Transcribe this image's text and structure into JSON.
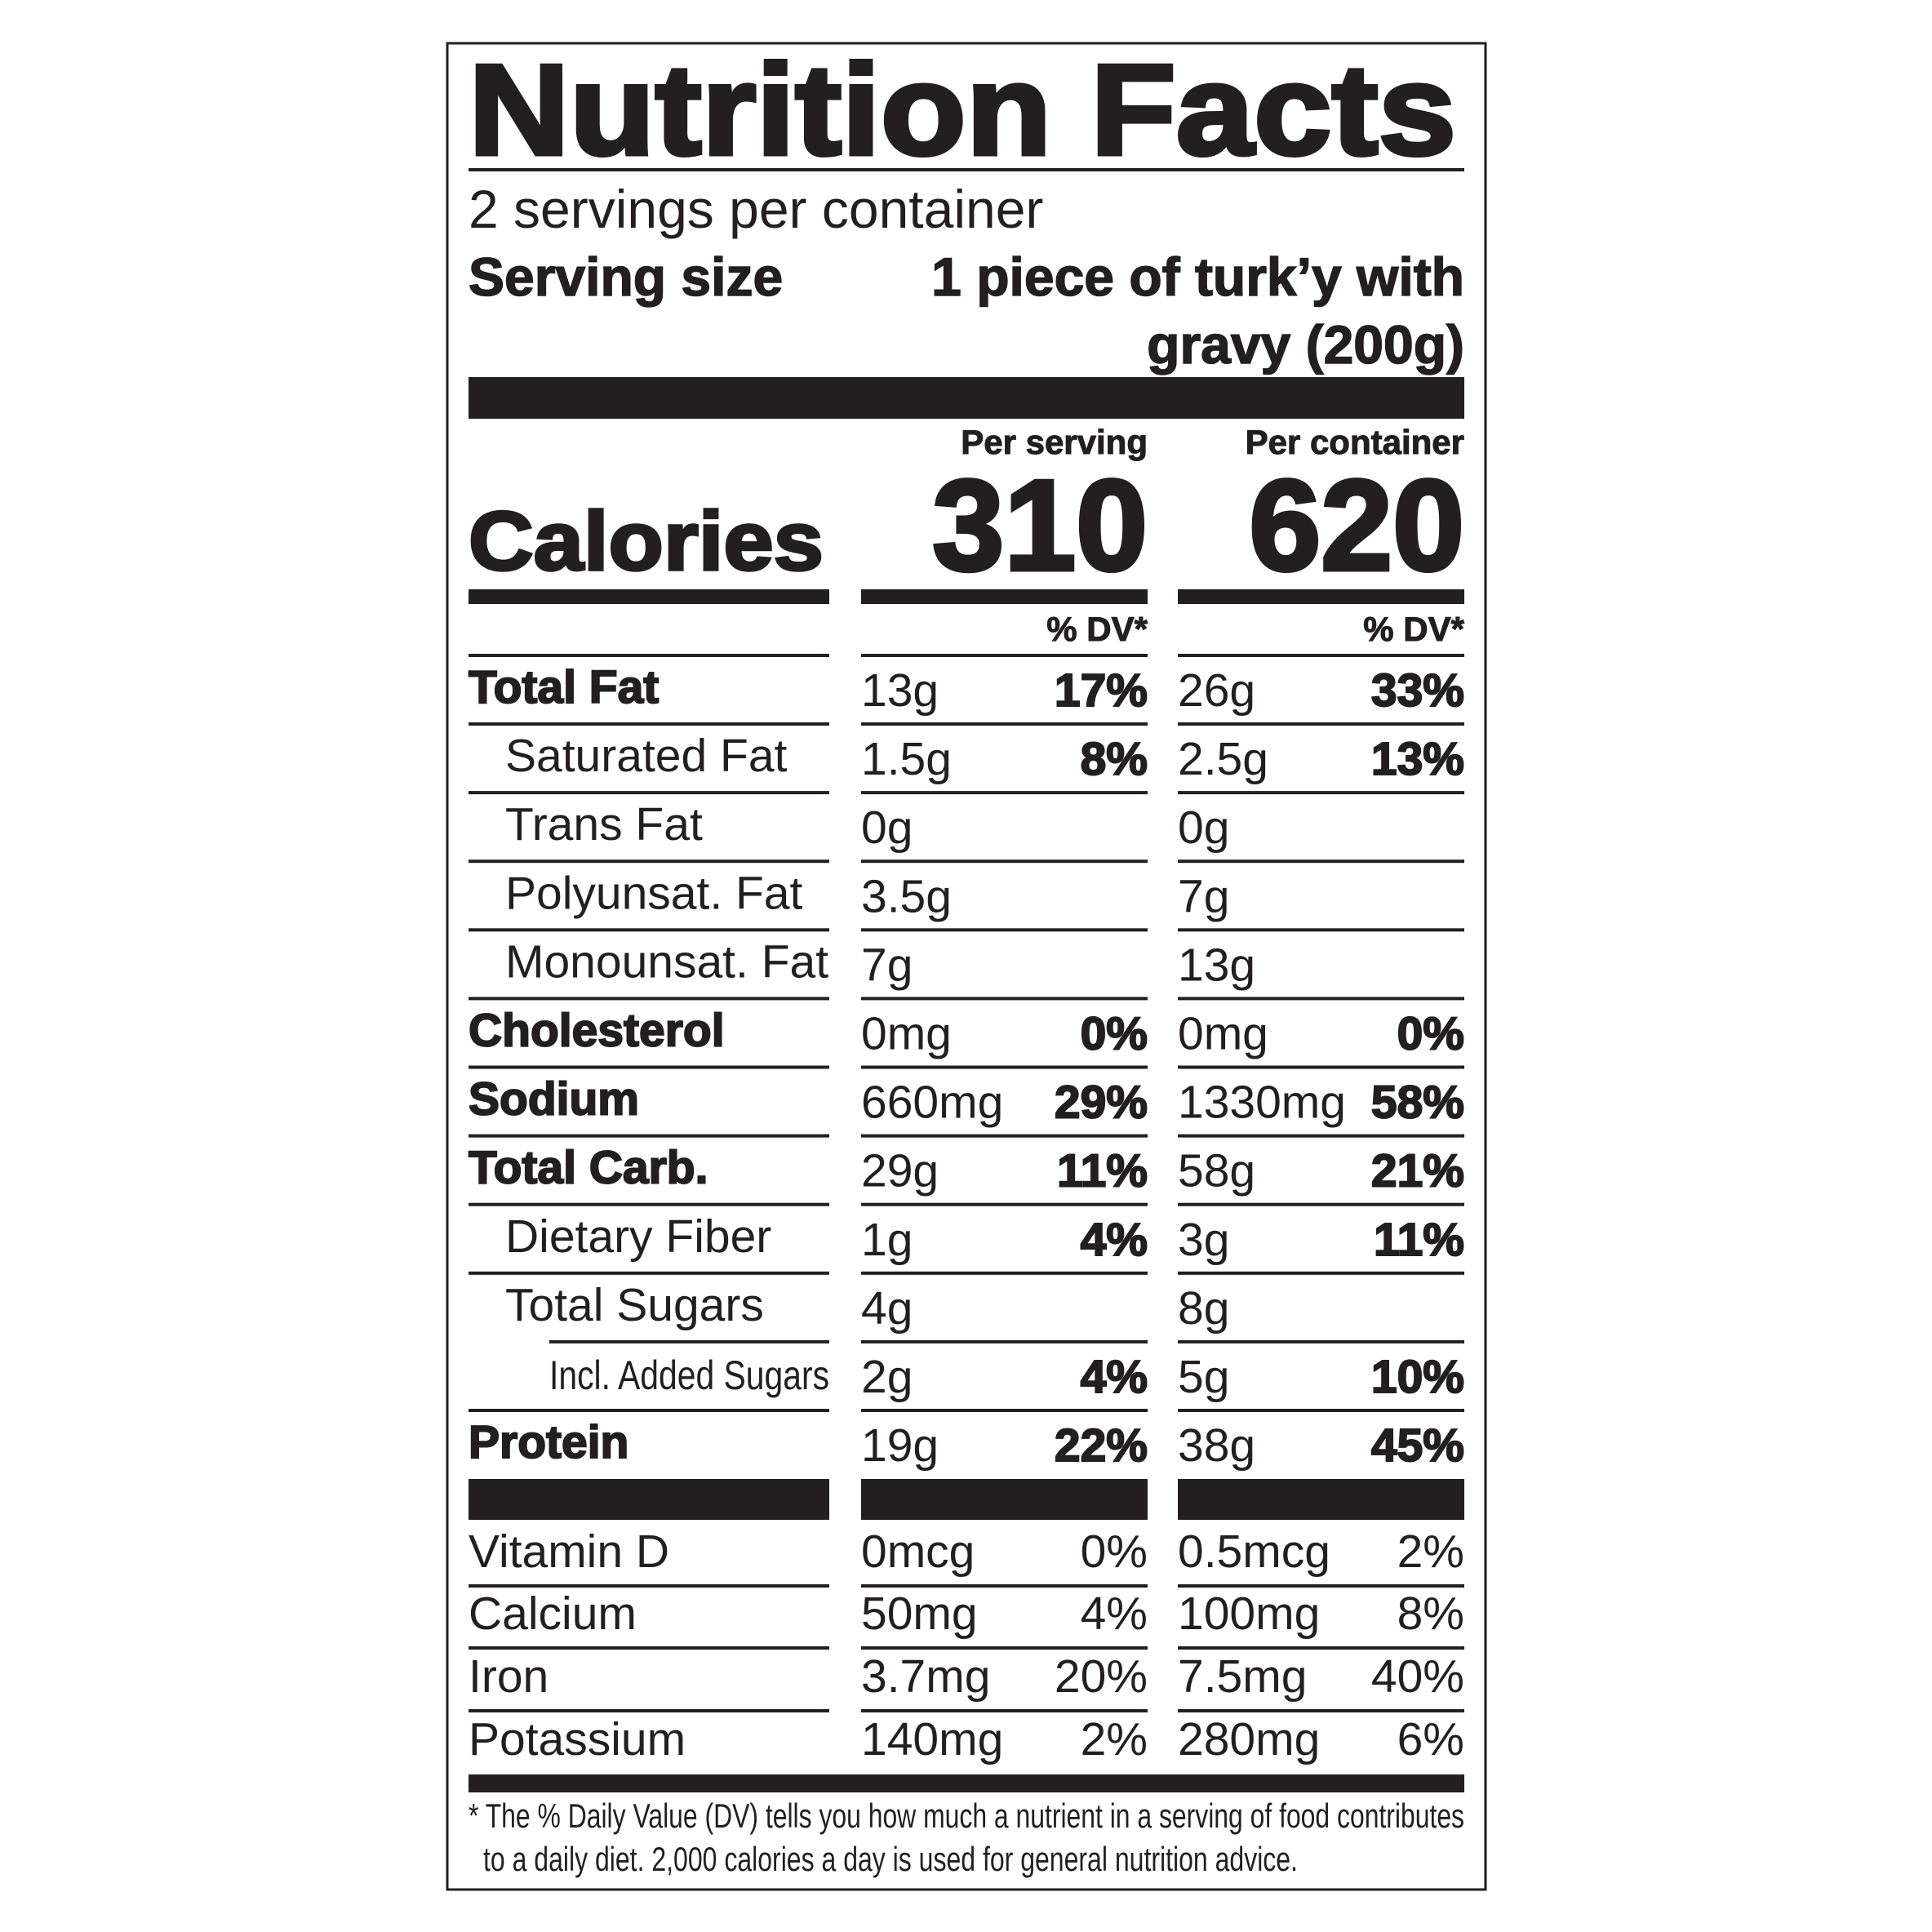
{
  "header": {
    "title": "Nutrition Facts",
    "servings": "2 servings per container",
    "serving_size_label": "Serving size",
    "serving_size_value": [
      "1 piece of turk’y with",
      "gravy (200g)"
    ]
  },
  "columns": [
    "Per serving",
    "Per container"
  ],
  "calories": {
    "label": "Calories",
    "values": [
      "310",
      "620"
    ]
  },
  "dv_header": "% DV*",
  "nutrients": [
    {
      "name": "Total Fat",
      "per_serving": [
        "13g",
        "17%"
      ],
      "per_container": [
        "26g",
        "33%"
      ]
    },
    {
      "name": "Saturated Fat",
      "per_serving": [
        "1.5g",
        "8%"
      ],
      "per_container": [
        "2.5g",
        "13%"
      ]
    },
    {
      "name": "Trans Fat",
      "per_serving": [
        "0g",
        null
      ],
      "per_container": [
        "0g",
        null
      ]
    },
    {
      "name": "Polyunsat. Fat",
      "per_serving": [
        "3.5g",
        null
      ],
      "per_container": [
        "7g",
        null
      ]
    },
    {
      "name": "Monounsat. Fat",
      "per_serving": [
        "7g",
        null
      ],
      "per_container": [
        "13g",
        null
      ]
    },
    {
      "name": "Cholesterol",
      "per_serving": [
        "0mg",
        "0%"
      ],
      "per_container": [
        "0mg",
        "0%"
      ]
    },
    {
      "name": "Sodium",
      "per_serving": [
        "660mg",
        "29%"
      ],
      "per_container": [
        "1330mg",
        "58%"
      ]
    },
    {
      "name": "Total Carb.",
      "per_serving": [
        "29g",
        "11%"
      ],
      "per_container": [
        "58g",
        "21%"
      ]
    },
    {
      "name": "Dietary Fiber",
      "per_serving": [
        "1g",
        "4%"
      ],
      "per_container": [
        "3g",
        "11%"
      ]
    },
    {
      "name": "Total Sugars",
      "per_serving": [
        "4g",
        null
      ],
      "per_container": [
        "8g",
        null
      ]
    },
    {
      "name": "Incl. Added Sugars",
      "per_serving": [
        "2g",
        "4%"
      ],
      "per_container": [
        "5g",
        "10%"
      ]
    },
    {
      "name": "Protein",
      "per_serving": [
        "19g",
        "22%"
      ],
      "per_container": [
        "38g",
        "45%"
      ]
    }
  ],
  "vitamins": [
    {
      "name": "Vitamin D",
      "per_serving": [
        "0mcg",
        "0%"
      ],
      "per_container": [
        "0.5mcg",
        "2%"
      ]
    },
    {
      "name": "Calcium",
      "per_serving": [
        "50mg",
        "4%"
      ],
      "per_container": [
        "100mg",
        "8%"
      ]
    },
    {
      "name": "Iron",
      "per_serving": [
        "3.7mg",
        "20%"
      ],
      "per_container": [
        "7.5mg",
        "40%"
      ]
    },
    {
      "name": "Potassium",
      "per_serving": [
        "140mg",
        "2%"
      ],
      "per_container": [
        "280mg",
        "6%"
      ]
    }
  ],
  "footnote": [
    "* The % Daily Value (DV) tells you how much a nutrient in a serving of food contributes",
    "to a daily diet. 2,000 calories a day is used for general nutrition advice."
  ]
}
